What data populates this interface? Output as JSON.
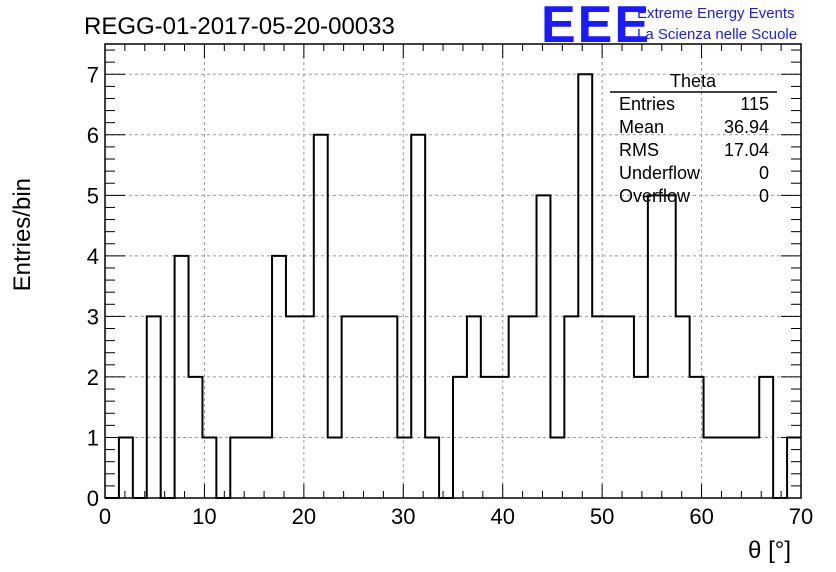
{
  "header": {
    "title": "REGG-01-2017-05-20-00033",
    "logo": "EEE",
    "tagline_1": "Extreme Energy Events",
    "tagline_2": "La Scienza nelle Scuole",
    "logo_color": "#1a1aff"
  },
  "stats_box": {
    "name": "Theta",
    "rows": [
      {
        "label": "Entries",
        "value": "115"
      },
      {
        "label": "Mean",
        "value": "36.94"
      },
      {
        "label": "RMS",
        "value": "17.04"
      },
      {
        "label": "Underflow",
        "value": "0"
      },
      {
        "label": "Overflow",
        "value": "0"
      }
    ]
  },
  "chart_data": {
    "type": "histogram",
    "xlabel": "θ [°]",
    "ylabel": "Entries/bin",
    "xlim": [
      0,
      70
    ],
    "ylim": [
      0,
      7.5
    ],
    "grid": true,
    "bin_width": 1.4,
    "x_ticks": [
      0,
      10,
      20,
      30,
      40,
      50,
      60,
      70
    ],
    "y_ticks": [
      0,
      1,
      2,
      3,
      4,
      5,
      6,
      7
    ],
    "bins": [
      {
        "x": 0.0,
        "y": 0
      },
      {
        "x": 1.4,
        "y": 1
      },
      {
        "x": 2.8,
        "y": 0
      },
      {
        "x": 4.2,
        "y": 3
      },
      {
        "x": 5.6,
        "y": 0
      },
      {
        "x": 7.0,
        "y": 4
      },
      {
        "x": 8.4,
        "y": 2
      },
      {
        "x": 9.8,
        "y": 1
      },
      {
        "x": 11.2,
        "y": 0
      },
      {
        "x": 12.6,
        "y": 1
      },
      {
        "x": 14.0,
        "y": 1
      },
      {
        "x": 15.4,
        "y": 1
      },
      {
        "x": 16.8,
        "y": 4
      },
      {
        "x": 18.2,
        "y": 3
      },
      {
        "x": 19.6,
        "y": 3
      },
      {
        "x": 21.0,
        "y": 6
      },
      {
        "x": 22.4,
        "y": 1
      },
      {
        "x": 23.8,
        "y": 3
      },
      {
        "x": 25.2,
        "y": 3
      },
      {
        "x": 26.6,
        "y": 3
      },
      {
        "x": 28.0,
        "y": 3
      },
      {
        "x": 29.4,
        "y": 1
      },
      {
        "x": 30.8,
        "y": 6
      },
      {
        "x": 32.2,
        "y": 1
      },
      {
        "x": 33.6,
        "y": 0
      },
      {
        "x": 35.0,
        "y": 2
      },
      {
        "x": 36.4,
        "y": 3
      },
      {
        "x": 37.8,
        "y": 2
      },
      {
        "x": 39.2,
        "y": 2
      },
      {
        "x": 40.6,
        "y": 3
      },
      {
        "x": 42.0,
        "y": 3
      },
      {
        "x": 43.4,
        "y": 5
      },
      {
        "x": 44.8,
        "y": 1
      },
      {
        "x": 46.2,
        "y": 3
      },
      {
        "x": 47.6,
        "y": 7
      },
      {
        "x": 49.0,
        "y": 3
      },
      {
        "x": 50.4,
        "y": 3
      },
      {
        "x": 51.8,
        "y": 3
      },
      {
        "x": 53.2,
        "y": 2
      },
      {
        "x": 54.6,
        "y": 5
      },
      {
        "x": 56.0,
        "y": 5
      },
      {
        "x": 57.4,
        "y": 3
      },
      {
        "x": 58.8,
        "y": 2
      },
      {
        "x": 60.2,
        "y": 1
      },
      {
        "x": 61.6,
        "y": 1
      },
      {
        "x": 63.0,
        "y": 1
      },
      {
        "x": 64.4,
        "y": 1
      },
      {
        "x": 65.8,
        "y": 2
      },
      {
        "x": 67.2,
        "y": 0
      },
      {
        "x": 68.6,
        "y": 1
      }
    ]
  }
}
